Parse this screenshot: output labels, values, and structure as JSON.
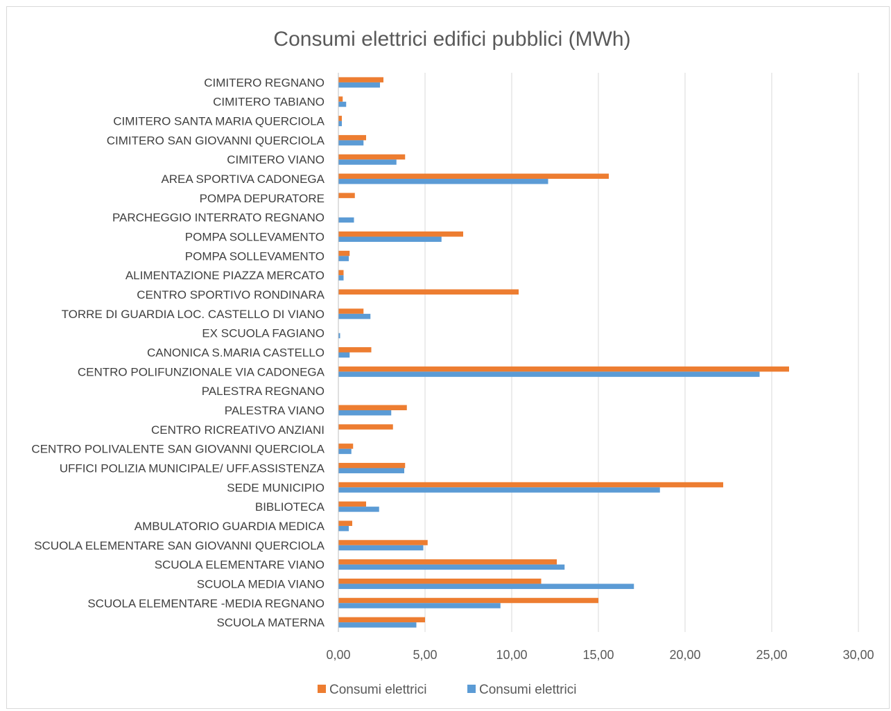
{
  "chart_data": {
    "type": "bar",
    "orientation": "horizontal",
    "title": "Consumi elettrici edifici pubblici (MWh)",
    "xlabel": "",
    "ylabel": "",
    "xlim": [
      0,
      30
    ],
    "x_ticks": [
      "0,00",
      "5,00",
      "10,00",
      "15,00",
      "20,00",
      "25,00",
      "30,00"
    ],
    "x_tick_values": [
      0,
      5,
      10,
      15,
      20,
      25,
      30
    ],
    "grid": true,
    "legend_position": "bottom",
    "categories": [
      "CIMITERO REGNANO",
      "CIMITERO TABIANO",
      "CIMITERO SANTA MARIA QUERCIOLA",
      "CIMITERO SAN GIOVANNI QUERCIOLA",
      "CIMITERO VIANO",
      "AREA SPORTIVA CADONEGA",
      "POMPA DEPURATORE",
      "PARCHEGGIO INTERRATO REGNANO",
      "POMPA SOLLEVAMENTO",
      "POMPA SOLLEVAMENTO",
      "ALIMENTAZIONE PIAZZA MERCATO",
      "CENTRO SPORTIVO RONDINARA",
      "TORRE DI GUARDIA LOC. CASTELLO DI VIANO",
      "EX SCUOLA FAGIANO",
      "CANONICA S.MARIA CASTELLO",
      "CENTRO POLIFUNZIONALE VIA CADONEGA",
      "PALESTRA REGNANO",
      "PALESTRA VIANO",
      "CENTRO RICREATIVO ANZIANI",
      "CENTRO POLIVALENTE SAN GIOVANNI QUERCIOLA",
      "UFFICI POLIZIA MUNICIPALE/ UFF.ASSISTENZA",
      "SEDE MUNICIPIO",
      "BIBLIOTECA",
      "AMBULATORIO GUARDIA MEDICA",
      "SCUOLA ELEMENTARE SAN GIOVANNI QUERCIOLA",
      "SCUOLA ELEMENTARE VIANO",
      "SCUOLA MEDIA VIANO",
      "SCUOLA ELEMENTARE -MEDIA REGNANO",
      "SCUOLA MATERNA"
    ],
    "series": [
      {
        "name": "Consumi elettrici",
        "color": "#ed7d31",
        "values": [
          2.6,
          0.25,
          0.2,
          1.6,
          3.85,
          15.6,
          0.95,
          0,
          7.2,
          0.65,
          0.3,
          10.4,
          1.45,
          0,
          1.9,
          26.0,
          0,
          3.95,
          3.15,
          0.85,
          3.85,
          22.2,
          1.6,
          0.8,
          5.15,
          12.6,
          11.7,
          15.0,
          5.0
        ]
      },
      {
        "name": "Consumi elettrici",
        "color": "#5b9bd5",
        "values": [
          2.4,
          0.45,
          0.2,
          1.45,
          3.35,
          12.1,
          0,
          0.9,
          5.95,
          0.6,
          0.3,
          0,
          1.85,
          0.1,
          0.65,
          24.3,
          0,
          3.05,
          0,
          0.75,
          3.8,
          18.55,
          2.35,
          0.6,
          4.9,
          13.05,
          17.05,
          9.35,
          4.5
        ]
      }
    ]
  }
}
